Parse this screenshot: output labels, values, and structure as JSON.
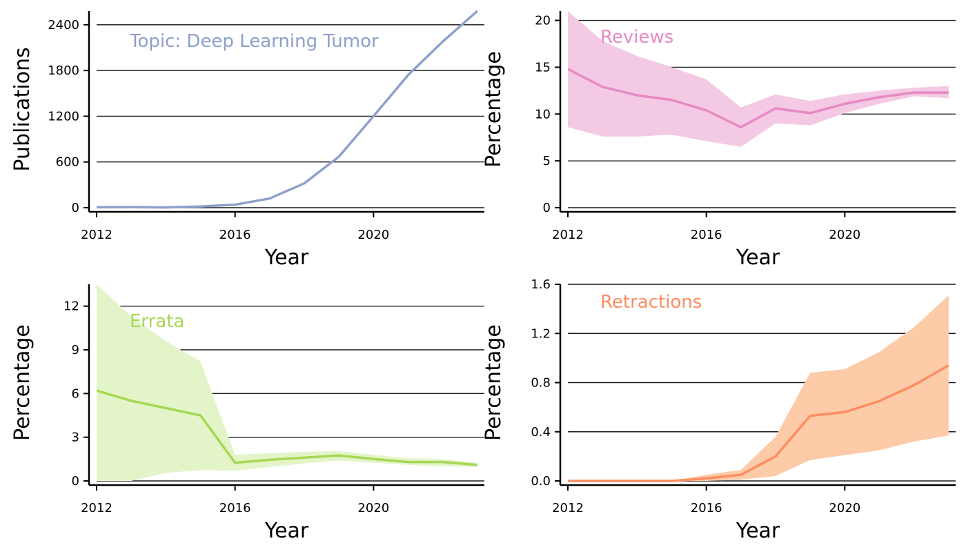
{
  "chart_data": [
    {
      "type": "line",
      "annotation": "Topic: Deep Learning Tumor",
      "color": "#8da0cb",
      "band_color": "#8da0cb",
      "xlabel": "Year",
      "ylabel": "Publications",
      "xlim": [
        2012,
        2024
      ],
      "ylim": [
        0,
        2580
      ],
      "xticks": [
        2012,
        2016,
        2020
      ],
      "xtick_labels": [
        "2012",
        "2016",
        "2020"
      ],
      "yticks": [
        0,
        600,
        1200,
        1800,
        2400
      ],
      "ytick_labels": [
        "0",
        "600",
        "1200",
        "1800",
        "2400"
      ],
      "grid": "horizontal",
      "x": [
        2012,
        2013,
        2014,
        2015,
        2016,
        2017,
        2018,
        2019,
        2020,
        2021,
        2022,
        2023
      ],
      "values": [
        5,
        6,
        4,
        15,
        40,
        120,
        320,
        670,
        1200,
        1740,
        2180,
        2580
      ],
      "lower": null,
      "upper": null
    },
    {
      "type": "line",
      "annotation": "Reviews",
      "color": "#e78ac3",
      "band_color": "#f4c9e4",
      "xlabel": "Year",
      "ylabel": "Percentage",
      "xlim": [
        2012,
        2024
      ],
      "ylim": [
        0,
        21
      ],
      "xticks": [
        2012,
        2016,
        2020
      ],
      "xtick_labels": [
        "2012",
        "2016",
        "2020"
      ],
      "yticks": [
        0,
        5,
        10,
        15,
        20
      ],
      "ytick_labels": [
        "0",
        "5",
        "10",
        "15",
        "20"
      ],
      "grid": "horizontal",
      "x": [
        2012,
        2013,
        2014,
        2015,
        2016,
        2017,
        2018,
        2019,
        2020,
        2021,
        2022,
        2023
      ],
      "values": [
        14.8,
        12.9,
        12.0,
        11.5,
        10.4,
        8.6,
        10.6,
        10.1,
        11.1,
        11.8,
        12.3,
        12.3
      ],
      "lower": [
        8.6,
        7.6,
        7.6,
        7.8,
        7.1,
        6.5,
        9.0,
        8.8,
        10.1,
        11.1,
        11.9,
        11.7
      ],
      "upper": [
        21.0,
        17.8,
        16.2,
        15.0,
        13.7,
        10.7,
        12.1,
        11.4,
        12.1,
        12.5,
        12.8,
        13.0
      ]
    },
    {
      "type": "line",
      "annotation": "Errata",
      "color": "#a6d854",
      "band_color": "#e3f4c9",
      "xlabel": "Year",
      "ylabel": "Percentage",
      "xlim": [
        2012,
        2024
      ],
      "ylim": [
        0,
        13.5
      ],
      "xticks": [
        2012,
        2016,
        2020
      ],
      "xtick_labels": [
        "2012",
        "2016",
        "2020"
      ],
      "yticks": [
        0,
        3,
        6,
        9,
        12
      ],
      "ytick_labels": [
        "0",
        "3",
        "6",
        "9",
        "12"
      ],
      "grid": "horizontal",
      "x": [
        2012,
        2013,
        2014,
        2015,
        2016,
        2017,
        2018,
        2019,
        2020,
        2021,
        2022,
        2023
      ],
      "values": [
        6.2,
        5.5,
        5.0,
        4.5,
        1.25,
        1.45,
        1.6,
        1.75,
        1.5,
        1.3,
        1.3,
        1.1
      ],
      "lower": [
        0.0,
        0.0,
        0.55,
        0.75,
        0.7,
        0.95,
        1.2,
        1.4,
        1.25,
        1.1,
        1.0,
        0.95
      ],
      "upper": [
        13.5,
        11.3,
        9.6,
        8.2,
        1.8,
        1.9,
        2.0,
        2.05,
        1.8,
        1.55,
        1.5,
        1.25
      ]
    },
    {
      "type": "line",
      "annotation": "Retractions",
      "color": "#fc8d62",
      "band_color": "#fdcba8",
      "xlabel": "Year",
      "ylabel": "Percentage",
      "xlim": [
        2012,
        2024
      ],
      "ylim": [
        0,
        1.6
      ],
      "xticks": [
        2012,
        2016,
        2020
      ],
      "xtick_labels": [
        "2012",
        "2016",
        "2020"
      ],
      "yticks": [
        0,
        0.4,
        0.8,
        1.2,
        1.6
      ],
      "ytick_labels": [
        "0.0",
        "0.4",
        "0.8",
        "1.2",
        "1.6"
      ],
      "grid": "horizontal",
      "x": [
        2012,
        2013,
        2014,
        2015,
        2016,
        2017,
        2018,
        2019,
        2020,
        2021,
        2022,
        2023
      ],
      "values": [
        0,
        0,
        0,
        0,
        0.02,
        0.05,
        0.2,
        0.53,
        0.56,
        0.65,
        0.78,
        0.94
      ],
      "lower": [
        0,
        0,
        0,
        0,
        0.0,
        0.01,
        0.04,
        0.17,
        0.21,
        0.25,
        0.32,
        0.37
      ],
      "upper": [
        0,
        0,
        0,
        0,
        0.05,
        0.09,
        0.36,
        0.88,
        0.91,
        1.05,
        1.25,
        1.51
      ]
    }
  ]
}
